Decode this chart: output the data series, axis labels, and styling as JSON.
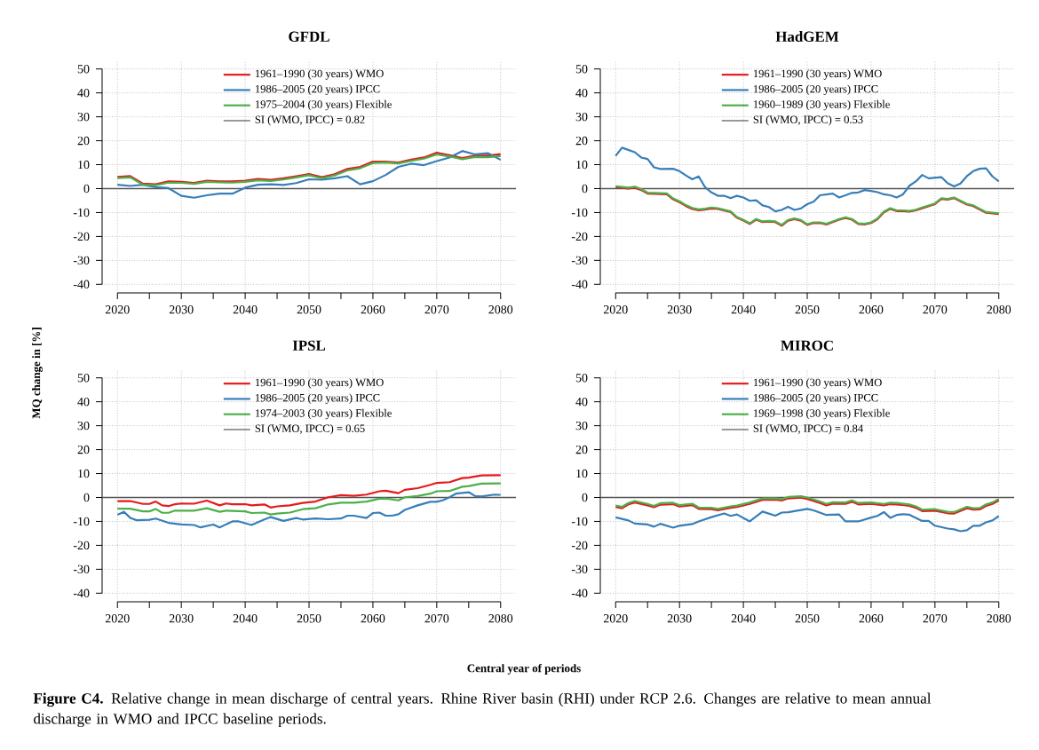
{
  "chart_data": [
    {
      "type": "line",
      "title": "GFDL",
      "ylabel": "MQ change in [%]",
      "xlim": [
        2017.6,
        2082.4
      ],
      "ylim": [
        -43.6,
        53.6
      ],
      "xticks": [
        2020,
        {
          "value": 2025,
          "label": null
        },
        2030,
        {
          "value": 2035,
          "label": null
        },
        2040,
        {
          "value": 2045,
          "label": null
        },
        2050,
        {
          "value": 2055,
          "label": null
        },
        2060,
        {
          "value": 2065,
          "label": null
        },
        2070,
        {
          "value": 2075,
          "label": null
        },
        2080
      ],
      "yticks": [
        -40,
        -30,
        -20,
        -10,
        0,
        10,
        20,
        30,
        40,
        50
      ],
      "grid": true,
      "legend": "top",
      "line_style": "solid",
      "ref_lines": [
        {
          "axis": "y",
          "value": 0,
          "color": "#555555"
        }
      ],
      "annotations": [
        "SI (WMO, IPCC) = 0.82"
      ],
      "series": [
        {
          "name": "1961–1990 (30 years) WMO",
          "color": "#e41a1c",
          "x": [
            2020,
            2022,
            2024,
            2026,
            2028,
            2030,
            2032,
            2034,
            2036,
            2038,
            2040,
            2042,
            2044,
            2046,
            2048,
            2050,
            2052,
            2054,
            2056,
            2058,
            2060,
            2062,
            2064,
            2066,
            2068,
            2070,
            2072,
            2074,
            2076,
            2078,
            2080
          ],
          "values": [
            4.9,
            5.2,
            2.1,
            1.8,
            3.0,
            2.8,
            2.4,
            3.3,
            3.0,
            3.0,
            3.3,
            4.0,
            3.7,
            4.3,
            5.2,
            6.1,
            4.8,
            6.0,
            8.2,
            9.1,
            11.3,
            11.3,
            10.9,
            12.1,
            13.0,
            15.0,
            14.0,
            12.8,
            13.8,
            13.8,
            14.4
          ]
        },
        {
          "name": "1986–2005 (20 years) IPCC",
          "color": "#377eb8",
          "x": [
            2020,
            2022,
            2024,
            2026,
            2028,
            2030,
            2032,
            2034,
            2036,
            2038,
            2040,
            2042,
            2044,
            2046,
            2048,
            2050,
            2052,
            2054,
            2056,
            2058,
            2060,
            2062,
            2064,
            2066,
            2068,
            2070,
            2072,
            2074,
            2076,
            2078,
            2080
          ],
          "values": [
            1.6,
            1.1,
            1.6,
            0.6,
            0.2,
            -3.0,
            -3.8,
            -2.8,
            -2.1,
            -2.1,
            0.4,
            1.6,
            1.8,
            1.5,
            2.3,
            3.9,
            3.7,
            4.3,
            5.2,
            1.8,
            3.1,
            5.7,
            9.1,
            10.4,
            9.8,
            11.5,
            13.0,
            15.7,
            14.3,
            14.8,
            12.0
          ]
        },
        {
          "name": "1975–2004 (30 years) Flexible",
          "color": "#4daf4a",
          "x": [
            2020,
            2022,
            2024,
            2026,
            2028,
            2030,
            2032,
            2034,
            2036,
            2038,
            2040,
            2042,
            2044,
            2046,
            2048,
            2050,
            2052,
            2054,
            2056,
            2058,
            2060,
            2062,
            2064,
            2066,
            2068,
            2070,
            2072,
            2074,
            2076,
            2078,
            2080
          ],
          "values": [
            4.4,
            4.7,
            1.6,
            1.4,
            2.5,
            2.4,
            2.0,
            2.8,
            2.6,
            2.5,
            2.8,
            3.5,
            3.2,
            3.8,
            4.7,
            5.6,
            4.3,
            5.5,
            7.6,
            8.5,
            10.7,
            10.9,
            10.5,
            11.6,
            12.5,
            14.3,
            13.4,
            12.3,
            13.2,
            13.1,
            13.6
          ]
        }
      ]
    },
    {
      "type": "line",
      "title": "HadGEM",
      "xlim": [
        2017.6,
        2082.4
      ],
      "ylim": [
        -43.6,
        53.6
      ],
      "xticks": [
        2020,
        {
          "value": 2025,
          "label": null
        },
        2030,
        {
          "value": 2035,
          "label": null
        },
        2040,
        {
          "value": 2045,
          "label": null
        },
        2050,
        {
          "value": 2055,
          "label": null
        },
        2060,
        {
          "value": 2065,
          "label": null
        },
        2070,
        {
          "value": 2075,
          "label": null
        },
        2080
      ],
      "yticks": [
        -40,
        -30,
        -20,
        -10,
        0,
        10,
        20,
        30,
        40,
        50
      ],
      "grid": true,
      "legend": "top",
      "line_style": "solid",
      "ref_lines": [
        {
          "axis": "y",
          "value": 0,
          "color": "#555555"
        }
      ],
      "annotations": [
        "SI (WMO, IPCC) = 0.53"
      ],
      "series": [
        {
          "name": "1961–1990 (30 years) WMO",
          "color": "#e41a1c",
          "x": [
            2020,
            2022,
            2023,
            2024,
            2025,
            2028,
            2029,
            2030,
            2031,
            2032,
            2033,
            2034,
            2035,
            2036,
            2038,
            2039,
            2040,
            2041,
            2042,
            2043,
            2044,
            2045,
            2046,
            2047,
            2048,
            2049,
            2050,
            2051,
            2052,
            2053,
            2054,
            2055,
            2056,
            2057,
            2058,
            2059,
            2060,
            2061,
            2062,
            2063,
            2064,
            2065,
            2066,
            2067,
            2068,
            2070,
            2071,
            2072,
            2073,
            2075,
            2076,
            2078,
            2080
          ],
          "values": [
            0.6,
            0,
            0.4,
            -0.6,
            -2.1,
            -2.4,
            -4.5,
            -5.7,
            -7.3,
            -8.5,
            -9.1,
            -8.8,
            -8.3,
            -8.5,
            -9.8,
            -12.2,
            -13.4,
            -14.8,
            -13.0,
            -14.0,
            -13.8,
            -14.0,
            -15.5,
            -13.4,
            -12.8,
            -13.4,
            -15.2,
            -14.4,
            -14.4,
            -15.0,
            -14.0,
            -13.0,
            -12.3,
            -13.0,
            -14.8,
            -15.0,
            -14.4,
            -12.8,
            -9.9,
            -8.5,
            -9.4,
            -9.4,
            -9.6,
            -9.1,
            -8.2,
            -6.5,
            -4.3,
            -4.6,
            -4.0,
            -6.7,
            -7.3,
            -10.1,
            -10.6
          ]
        },
        {
          "name": "1986–2005 (20 years) IPCC",
          "color": "#377eb8",
          "x": [
            2020,
            2021,
            2023,
            2024,
            2025,
            2026,
            2027,
            2029,
            2030,
            2031,
            2032,
            2033,
            2034,
            2035,
            2036,
            2037,
            2038,
            2039,
            2040,
            2041,
            2042,
            2043,
            2044,
            2045,
            2046,
            2047,
            2048,
            2049,
            2050,
            2051,
            2052,
            2054,
            2055,
            2056,
            2057,
            2058,
            2059,
            2060,
            2061,
            2062,
            2063,
            2064,
            2065,
            2066,
            2067,
            2068,
            2069,
            2071,
            2072,
            2073,
            2074,
            2075,
            2076,
            2077,
            2078,
            2079,
            2080
          ],
          "values": [
            13.7,
            17.1,
            15.2,
            13.0,
            12.4,
            8.9,
            8.2,
            8.3,
            7.3,
            5.5,
            3.9,
            5.1,
            0.6,
            -1.6,
            -3.0,
            -3.0,
            -4.0,
            -3.0,
            -3.7,
            -5.1,
            -4.9,
            -7.0,
            -7.7,
            -9.5,
            -8.9,
            -7.6,
            -8.9,
            -8.3,
            -6.5,
            -5.5,
            -2.8,
            -2.1,
            -3.7,
            -2.8,
            -1.8,
            -1.6,
            -0.6,
            -1.0,
            -1.5,
            -2.4,
            -2.8,
            -3.7,
            -2.4,
            1.2,
            3.0,
            5.7,
            4.3,
            4.8,
            2.2,
            0.9,
            2.1,
            5.2,
            7.3,
            8.3,
            8.5,
            5.1,
            3.0
          ]
        },
        {
          "name": "1960–1989 (30 years) Flexible",
          "color": "#4daf4a",
          "x": [
            2020,
            2022,
            2023,
            2024,
            2025,
            2028,
            2029,
            2030,
            2031,
            2032,
            2033,
            2034,
            2035,
            2036,
            2038,
            2039,
            2040,
            2041,
            2042,
            2043,
            2044,
            2045,
            2046,
            2047,
            2048,
            2049,
            2050,
            2051,
            2052,
            2053,
            2054,
            2055,
            2056,
            2057,
            2058,
            2059,
            2060,
            2061,
            2062,
            2063,
            2064,
            2065,
            2066,
            2067,
            2068,
            2070,
            2071,
            2072,
            2073,
            2075,
            2076,
            2078,
            2080
          ],
          "values": [
            1.0,
            0.4,
            0.8,
            -0.2,
            -1.7,
            -2.0,
            -4.1,
            -5.3,
            -6.9,
            -8.1,
            -8.7,
            -8.4,
            -7.9,
            -8.2,
            -9.5,
            -11.9,
            -13.1,
            -14.5,
            -12.7,
            -13.7,
            -13.5,
            -13.7,
            -15.2,
            -13.1,
            -12.5,
            -13.1,
            -14.9,
            -14.1,
            -14.1,
            -14.7,
            -13.7,
            -12.7,
            -12.0,
            -12.7,
            -14.5,
            -14.7,
            -14.1,
            -12.5,
            -9.6,
            -8.2,
            -9.1,
            -9.1,
            -9.3,
            -8.8,
            -7.9,
            -6.2,
            -4.0,
            -4.3,
            -3.7,
            -6.4,
            -7.0,
            -9.8,
            -10.3
          ]
        }
      ]
    },
    {
      "type": "line",
      "title": "IPSL",
      "xlabel": "Central year of periods",
      "xlim": [
        2017.6,
        2082.4
      ],
      "ylim": [
        -43.6,
        53.6
      ],
      "xticks": [
        2020,
        {
          "value": 2025,
          "label": null
        },
        2030,
        {
          "value": 2035,
          "label": null
        },
        2040,
        {
          "value": 2045,
          "label": null
        },
        2050,
        {
          "value": 2055,
          "label": null
        },
        2060,
        {
          "value": 2065,
          "label": null
        },
        2070,
        {
          "value": 2075,
          "label": null
        },
        2080
      ],
      "yticks": [
        -40,
        -30,
        -20,
        -10,
        0,
        10,
        20,
        30,
        40,
        50
      ],
      "grid": true,
      "legend": "top",
      "line_style": "solid",
      "ref_lines": [
        {
          "axis": "y",
          "value": 0,
          "color": "#555555"
        }
      ],
      "annotations": [
        "SI (WMO, IPCC) = 0.65",
        "**Figure C4.** Relative change in mean discharge of central years. Rhine River basin (RHI) under RCP 2.6. Changes are relative to mean annual discharge in WMO and IPCC baseline periods."
      ],
      "series": [
        {
          "name": "1961–1990 (30 years) WMO",
          "color": "#e41a1c",
          "x": [
            2020,
            2022,
            2024,
            2025,
            2026,
            2027,
            2028,
            2029,
            2030,
            2032,
            2034,
            2036,
            2037,
            2038,
            2040,
            2041,
            2043,
            2044,
            2045,
            2047,
            2049,
            2051,
            2053,
            2055,
            2057,
            2059,
            2061,
            2062,
            2064,
            2065,
            2067,
            2069,
            2070,
            2072,
            2074,
            2075,
            2077,
            2080
          ],
          "values": [
            -1.5,
            -1.5,
            -2.7,
            -2.7,
            -1.7,
            -3.3,
            -3.6,
            -2.8,
            -2.5,
            -2.6,
            -1.3,
            -3.3,
            -2.5,
            -2.8,
            -2.8,
            -3.3,
            -2.9,
            -4.2,
            -3.7,
            -3.3,
            -2.3,
            -1.7,
            0.1,
            1.0,
            0.7,
            1.2,
            2.6,
            2.8,
            1.8,
            3.2,
            3.9,
            5.3,
            6.1,
            6.4,
            8.1,
            8.3,
            9.2,
            9.3
          ]
        },
        {
          "name": "1986–2005 (20 years) IPCC",
          "color": "#377eb8",
          "x": [
            2020,
            2021,
            2022,
            2023,
            2025,
            2026,
            2028,
            2030,
            2032,
            2033,
            2035,
            2036,
            2038,
            2039,
            2041,
            2043,
            2044,
            2046,
            2048,
            2049,
            2051,
            2053,
            2055,
            2056,
            2057,
            2059,
            2060,
            2061,
            2062,
            2063,
            2064,
            2065,
            2067,
            2069,
            2070,
            2071,
            2072,
            2073,
            2075,
            2076,
            2077,
            2079,
            2080
          ],
          "values": [
            -7.2,
            -6.0,
            -8.5,
            -9.5,
            -9.3,
            -8.8,
            -10.6,
            -11.3,
            -11.5,
            -12.5,
            -11.3,
            -12.5,
            -10.0,
            -10.0,
            -11.5,
            -9.2,
            -8.2,
            -9.8,
            -8.6,
            -9.2,
            -8.8,
            -9.1,
            -8.8,
            -7.6,
            -7.6,
            -8.6,
            -6.5,
            -6.3,
            -7.6,
            -7.6,
            -7.0,
            -5.2,
            -3.3,
            -1.8,
            -1.8,
            -1.1,
            0.1,
            1.6,
            2.2,
            0.6,
            0.4,
            1.2,
            1.1
          ]
        },
        {
          "name": "1974–2003 (30 years) Flexible",
          "color": "#4daf4a",
          "x": [
            2020,
            2022,
            2024,
            2025,
            2026,
            2027,
            2028,
            2029,
            2030,
            2032,
            2034,
            2036,
            2037,
            2038,
            2040,
            2041,
            2043,
            2044,
            2045,
            2047,
            2049,
            2051,
            2053,
            2055,
            2057,
            2059,
            2061,
            2062,
            2064,
            2065,
            2067,
            2069,
            2070,
            2072,
            2074,
            2075,
            2077,
            2080
          ],
          "values": [
            -4.7,
            -4.7,
            -5.8,
            -5.8,
            -4.8,
            -6.4,
            -6.4,
            -5.5,
            -5.5,
            -5.5,
            -4.5,
            -6.0,
            -5.5,
            -5.6,
            -5.8,
            -6.5,
            -6.3,
            -7.1,
            -6.7,
            -6.3,
            -4.9,
            -4.5,
            -2.9,
            -2.2,
            -2.2,
            -1.7,
            -0.5,
            -0.4,
            -1.2,
            0.1,
            0.6,
            1.6,
            2.6,
            2.7,
            4.5,
            4.8,
            5.8,
            5.9
          ]
        }
      ]
    },
    {
      "type": "line",
      "title": "MIROC",
      "xlim": [
        2017.6,
        2082.4
      ],
      "ylim": [
        -43.6,
        53.6
      ],
      "xticks": [
        2020,
        {
          "value": 2025,
          "label": null
        },
        2030,
        {
          "value": 2035,
          "label": null
        },
        2040,
        {
          "value": 2045,
          "label": null
        },
        2050,
        {
          "value": 2055,
          "label": null
        },
        2060,
        {
          "value": 2065,
          "label": null
        },
        2070,
        {
          "value": 2075,
          "label": null
        },
        2080
      ],
      "yticks": [
        -40,
        -30,
        -20,
        -10,
        0,
        10,
        20,
        30,
        40,
        50
      ],
      "grid": true,
      "legend": "top",
      "line_style": "solid",
      "ref_lines": [
        {
          "axis": "y",
          "value": 0,
          "color": "#555555"
        }
      ],
      "annotations": [
        "SI (WMO, IPCC) = 0.84"
      ],
      "series": [
        {
          "name": "1961–1990 (30 years) WMO",
          "color": "#e41a1c",
          "x": [
            2020,
            2021,
            2022,
            2023,
            2025,
            2026,
            2027,
            2029,
            2030,
            2032,
            2033,
            2035,
            2036,
            2038,
            2039,
            2041,
            2043,
            2045,
            2046,
            2047,
            2049,
            2050,
            2052,
            2053,
            2054,
            2056,
            2057,
            2058,
            2060,
            2062,
            2063,
            2064,
            2066,
            2067,
            2068,
            2070,
            2072,
            2073,
            2075,
            2076,
            2077,
            2078,
            2079,
            2080
          ],
          "values": [
            -4.0,
            -4.5,
            -2.9,
            -2.1,
            -3.3,
            -4.1,
            -3.0,
            -2.8,
            -3.8,
            -3.2,
            -4.8,
            -4.9,
            -5.4,
            -4.3,
            -4.0,
            -2.7,
            -1.0,
            -0.9,
            -1.3,
            -0.4,
            -0.1,
            -0.6,
            -2.3,
            -3.3,
            -2.6,
            -2.7,
            -1.8,
            -2.9,
            -2.7,
            -3.3,
            -2.8,
            -2.9,
            -3.5,
            -4.3,
            -5.7,
            -5.5,
            -6.6,
            -6.7,
            -4.5,
            -5.1,
            -5.0,
            -3.5,
            -2.7,
            -1.2
          ]
        },
        {
          "name": "1986–2005 (20 years) IPCC",
          "color": "#377eb8",
          "x": [
            2020,
            2022,
            2023,
            2025,
            2026,
            2027,
            2029,
            2030,
            2032,
            2033,
            2035,
            2037,
            2038,
            2039,
            2041,
            2043,
            2045,
            2046,
            2047,
            2050,
            2051,
            2053,
            2055,
            2056,
            2058,
            2060,
            2061,
            2062,
            2063,
            2064,
            2065,
            2066,
            2068,
            2069,
            2070,
            2072,
            2073,
            2074,
            2075,
            2076,
            2077,
            2078,
            2079,
            2080
          ],
          "values": [
            -8.3,
            -9.6,
            -10.9,
            -11.3,
            -12.2,
            -11.0,
            -12.6,
            -11.8,
            -11.1,
            -10.0,
            -8.2,
            -6.7,
            -7.7,
            -7.1,
            -10.0,
            -5.9,
            -7.6,
            -6.3,
            -6.2,
            -4.8,
            -5.4,
            -7.3,
            -7.1,
            -10.0,
            -10.0,
            -8.4,
            -7.7,
            -6.1,
            -8.5,
            -7.3,
            -7.0,
            -7.2,
            -9.8,
            -9.8,
            -11.8,
            -13.0,
            -13.3,
            -14.1,
            -13.7,
            -11.8,
            -11.8,
            -10.4,
            -9.6,
            -7.8
          ]
        },
        {
          "name": "1969–1998 (30 years) Flexible",
          "color": "#4daf4a",
          "x": [
            2020,
            2021,
            2022,
            2023,
            2025,
            2026,
            2027,
            2029,
            2030,
            2032,
            2033,
            2035,
            2036,
            2038,
            2039,
            2041,
            2043,
            2045,
            2046,
            2047,
            2049,
            2050,
            2052,
            2053,
            2054,
            2056,
            2057,
            2058,
            2060,
            2062,
            2063,
            2064,
            2066,
            2067,
            2068,
            2070,
            2072,
            2073,
            2075,
            2076,
            2077,
            2078,
            2079,
            2080
          ],
          "values": [
            -3.4,
            -3.9,
            -2.3,
            -1.5,
            -2.7,
            -3.5,
            -2.4,
            -2.2,
            -3.2,
            -2.6,
            -4.2,
            -4.3,
            -4.8,
            -3.7,
            -3.4,
            -2.1,
            -0.4,
            -0.3,
            -0.7,
            0.2,
            0.5,
            0.0,
            -1.7,
            -2.7,
            -2.0,
            -2.1,
            -1.2,
            -2.3,
            -2.1,
            -2.7,
            -2.2,
            -2.3,
            -2.9,
            -3.7,
            -5.1,
            -4.9,
            -6.0,
            -6.1,
            -3.9,
            -4.5,
            -4.4,
            -2.9,
            -2.1,
            -0.6
          ]
        }
      ]
    }
  ]
}
